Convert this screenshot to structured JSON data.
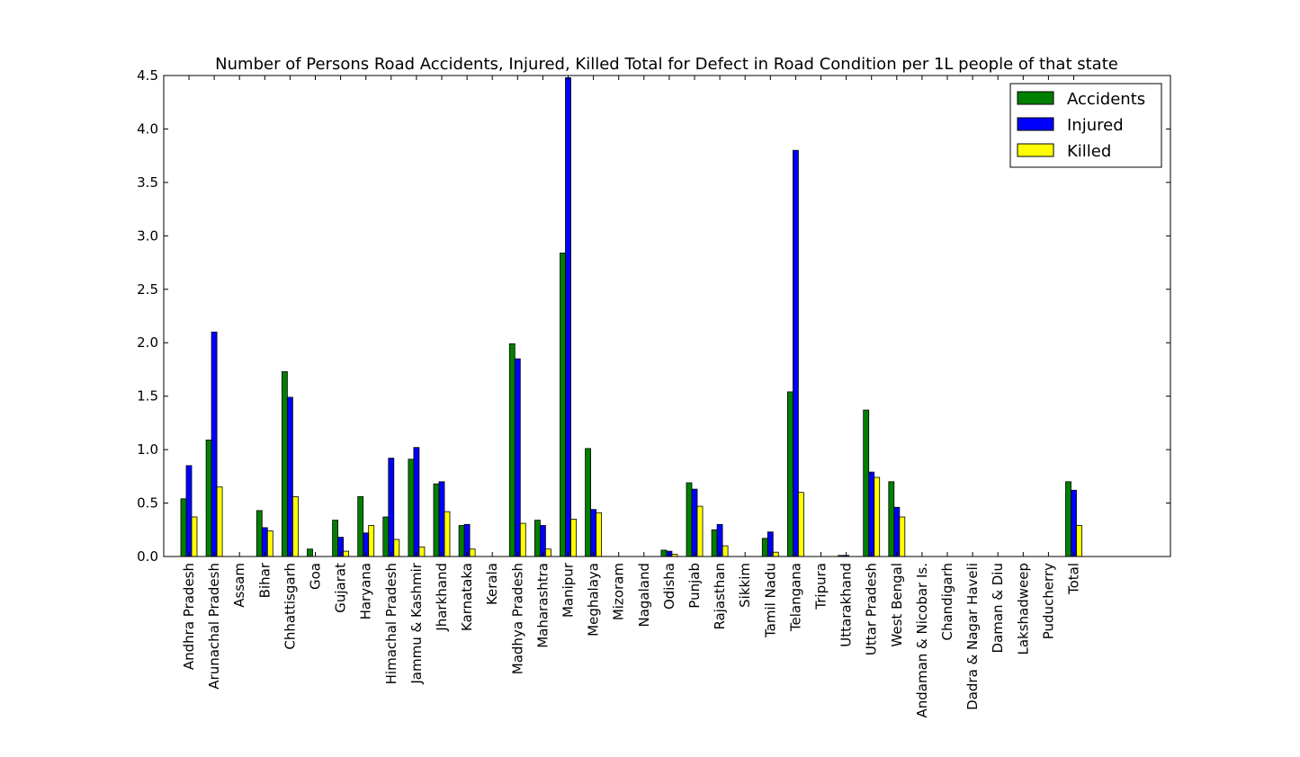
{
  "chart_data": {
    "type": "bar",
    "title": "Number of Persons Road Accidents, Injured, Killed Total for Defect in Road Condition per 1L people of that state",
    "xlabel": "",
    "ylabel": "",
    "ylim": [
      0,
      4.5
    ],
    "yticks": [
      "0.0",
      "0.5",
      "1.0",
      "1.5",
      "2.0",
      "2.5",
      "3.0",
      "3.5",
      "4.0",
      "4.5"
    ],
    "grid": false,
    "legend_position": "top-right",
    "categories": [
      "Andhra Pradesh",
      "Arunachal Pradesh",
      "Assam",
      "Bihar",
      "Chhattisgarh",
      "Goa",
      "Gujarat",
      "Haryana",
      "Himachal Pradesh",
      "Jammu & Kashmir",
      "Jharkhand",
      "Karnataka",
      "Kerala",
      "Madhya Pradesh",
      "Maharashtra",
      "Manipur",
      "Meghalaya",
      "Mizoram",
      "Nagaland",
      "Odisha",
      "Punjab",
      "Rajasthan",
      "Sikkim",
      "Tamil Nadu",
      "Telangana",
      "Tripura",
      "Uttarakhand",
      "Uttar Pradesh",
      "West Bengal",
      "Andaman & Nicobar Is.",
      "Chandigarh",
      "Dadra & Nagar Haveli",
      "Daman & Diu",
      "Lakshadweep",
      "Puducherry",
      "Total"
    ],
    "series": [
      {
        "name": "Accidents",
        "color": "#008000",
        "values": [
          0.54,
          1.09,
          0,
          0.43,
          1.73,
          0.07,
          0.34,
          0.56,
          0.37,
          0.91,
          0.68,
          0.29,
          0,
          1.99,
          0.34,
          2.84,
          1.01,
          0,
          0,
          0.06,
          0.69,
          0.25,
          0,
          0.17,
          1.54,
          0,
          0.01,
          1.37,
          0.7,
          0,
          0,
          0,
          0,
          0,
          0,
          0.7
        ]
      },
      {
        "name": "Injured",
        "color": "#0000ff",
        "values": [
          0.85,
          2.1,
          0,
          0.27,
          1.49,
          0,
          0.18,
          0.22,
          0.92,
          1.02,
          0.7,
          0.3,
          0,
          1.85,
          0.29,
          4.48,
          0.44,
          0,
          0,
          0.05,
          0.63,
          0.3,
          0,
          0.23,
          3.8,
          0,
          0.01,
          0.79,
          0.46,
          0,
          0,
          0,
          0,
          0,
          0,
          0.62
        ]
      },
      {
        "name": "Killed",
        "color": "#ffff00",
        "values": [
          0.37,
          0.65,
          0,
          0.24,
          0.56,
          0,
          0.05,
          0.29,
          0.16,
          0.09,
          0.42,
          0.07,
          0,
          0.31,
          0.07,
          0.35,
          0.41,
          0,
          0,
          0.02,
          0.47,
          0.1,
          0,
          0.04,
          0.6,
          0,
          0,
          0.74,
          0.37,
          0,
          0,
          0,
          0,
          0,
          0,
          0.29
        ]
      }
    ]
  }
}
